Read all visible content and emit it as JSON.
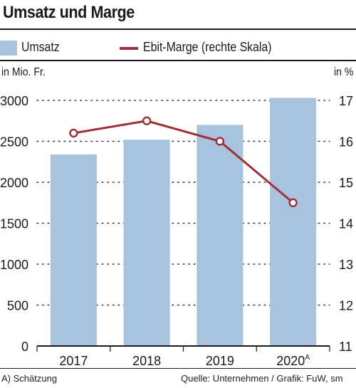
{
  "title": "Umsatz und Marge",
  "legend": {
    "bar_label": "Umsatz",
    "line_label": "Ebit-Marge (rechte Skala)"
  },
  "units": {
    "left": "in Mio. Fr.",
    "right": "in %"
  },
  "footnote": "A) Schätzung",
  "source": "Quelle: Unternehmen / Grafik: FuW, sm",
  "colors": {
    "bar": "#a7c3de",
    "line": "#a03037",
    "marker_fill": "#ffffff",
    "text": "#1a1a1a"
  },
  "chart_data": {
    "type": "bar",
    "categories": [
      "2017",
      "2018",
      "2019",
      "2020"
    ],
    "category_superscripts": [
      "",
      "",
      "",
      "A"
    ],
    "series": [
      {
        "name": "Umsatz",
        "type": "bar",
        "axis": "left",
        "values": [
          2340,
          2520,
          2700,
          3030
        ]
      },
      {
        "name": "Ebit-Marge (rechte Skala)",
        "type": "line",
        "axis": "right",
        "values": [
          16.2,
          16.5,
          16.0,
          14.5
        ]
      }
    ],
    "y_left": {
      "lim": [
        0,
        3000
      ],
      "ticks": [
        0,
        500,
        1000,
        1500,
        2000,
        2500,
        3000
      ],
      "label": "in Mio. Fr."
    },
    "y_right": {
      "lim": [
        11,
        17
      ],
      "ticks": [
        11,
        12,
        13,
        14,
        15,
        16,
        17
      ],
      "label": "in %"
    },
    "grid": "dotted horizontal",
    "legend_position": "top"
  }
}
